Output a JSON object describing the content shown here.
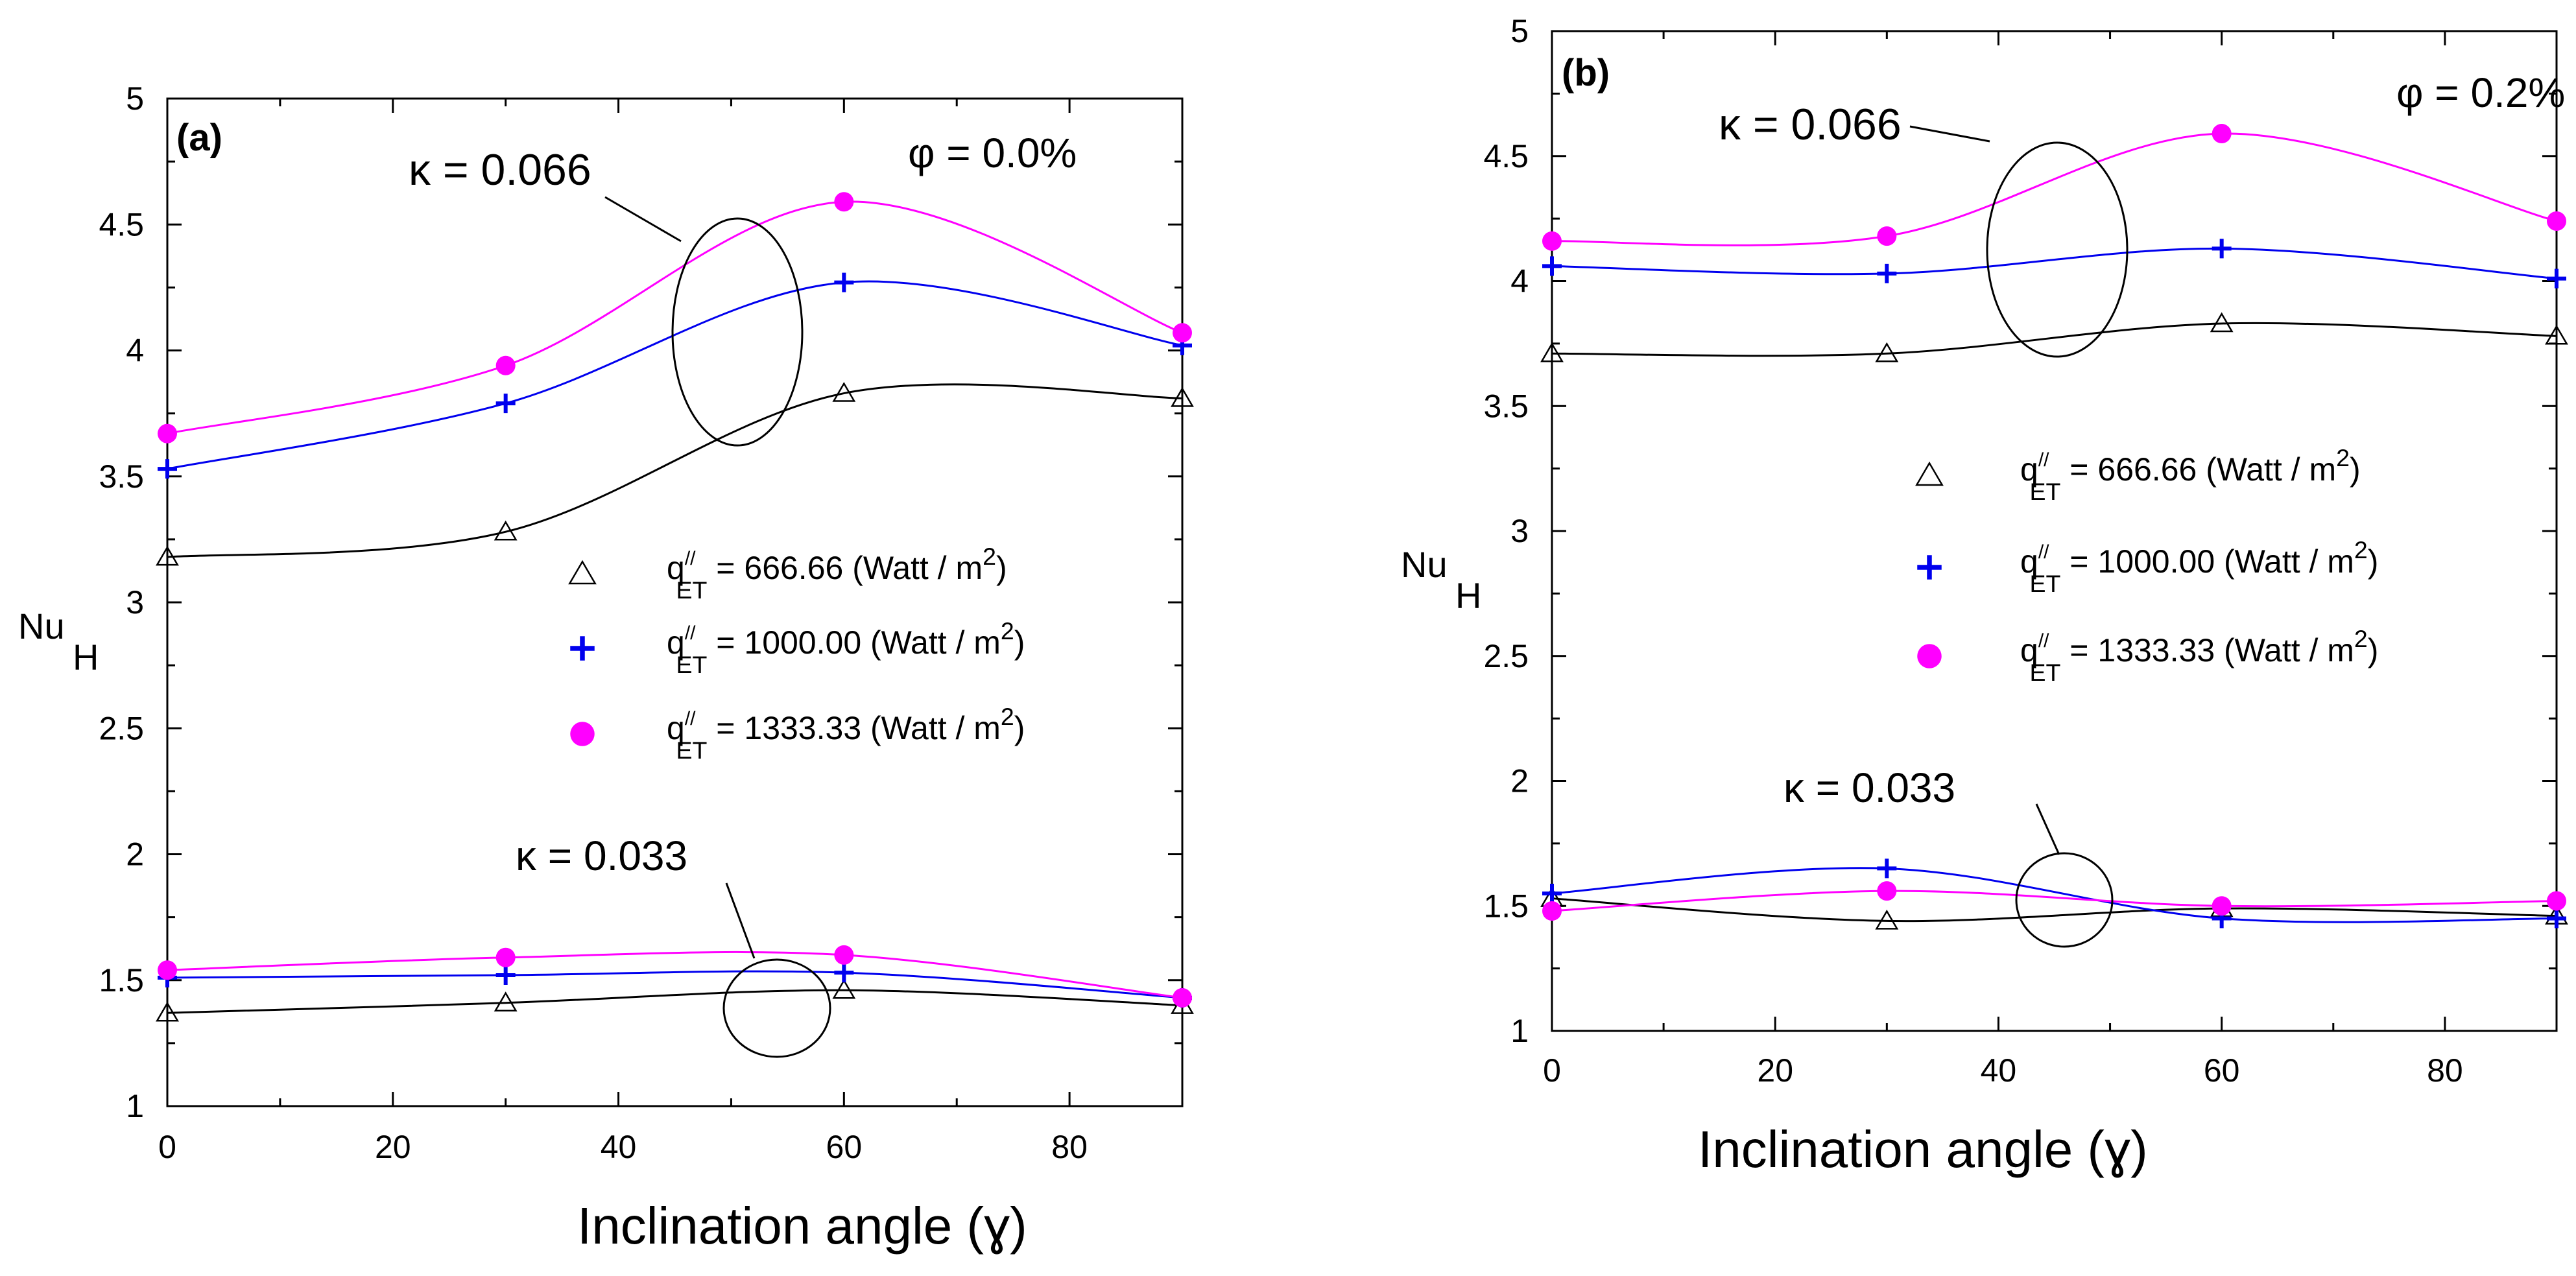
{
  "chart_data": [
    {
      "type": "line",
      "panel_label": "(a)",
      "phi_label": "φ = 0.0%",
      "xlabel": "Inclination angle (ɣ)",
      "ylabel_main": "Nu",
      "ylabel_sub": "H",
      "xlim": [
        0,
        90
      ],
      "ylim": [
        1,
        5
      ],
      "xticks": [
        0,
        20,
        40,
        60,
        80
      ],
      "yticks": [
        1,
        1.5,
        2,
        2.5,
        3,
        3.5,
        4,
        4.5,
        5
      ],
      "ytick_labels": [
        "1",
        "1.5",
        "2",
        "2.5",
        "3",
        "3.5",
        "4",
        "4.5",
        "5"
      ],
      "x": [
        0,
        30,
        60,
        90
      ],
      "groups": [
        {
          "kappa_label": "κ  = 0.066",
          "series": [
            {
              "key": "q666",
              "values": [
                3.18,
                3.28,
                3.83,
                3.81
              ]
            },
            {
              "key": "q1000",
              "values": [
                3.53,
                3.79,
                4.27,
                4.02
              ]
            },
            {
              "key": "q1333",
              "values": [
                3.67,
                3.94,
                4.59,
                4.07
              ]
            }
          ]
        },
        {
          "kappa_label": "κ = 0.033",
          "series": [
            {
              "key": "q666",
              "values": [
                1.37,
                1.41,
                1.46,
                1.4
              ]
            },
            {
              "key": "q1000",
              "values": [
                1.51,
                1.52,
                1.53,
                1.43
              ]
            },
            {
              "key": "q1333",
              "values": [
                1.54,
                1.59,
                1.6,
                1.43
              ]
            }
          ]
        }
      ],
      "legend": [
        {
          "key": "q666",
          "prefix": "q",
          "sup": "//",
          "sub": "ET",
          "text": " = 666.66 (Watt / m",
          "exp": "2",
          "close": ")"
        },
        {
          "key": "q1000",
          "prefix": "q",
          "sup": "//",
          "sub": "ET",
          "text": " = 1000.00 (Watt / m",
          "exp": "2",
          "close": ")"
        },
        {
          "key": "q1333",
          "prefix": "q",
          "sup": "//",
          "sub": "ET",
          "text": " = 1333.33 (Watt / m",
          "exp": "2",
          "close": ")"
        }
      ]
    },
    {
      "type": "line",
      "panel_label": "(b)",
      "phi_label": "φ = 0.2%",
      "xlabel": "Inclination angle (ɣ)",
      "ylabel_main": "Nu",
      "ylabel_sub": "H",
      "xlim": [
        0,
        90
      ],
      "ylim": [
        1,
        5
      ],
      "xticks": [
        0,
        20,
        40,
        60,
        80
      ],
      "yticks": [
        1,
        1.5,
        2,
        2.5,
        3,
        3.5,
        4,
        4.5,
        5
      ],
      "ytick_labels": [
        "1",
        "1.5",
        "2",
        "2.5",
        "3",
        "3.5",
        "4",
        "4.5",
        "5"
      ],
      "x": [
        0,
        30,
        60,
        90
      ],
      "groups": [
        {
          "kappa_label": "κ = 0.066",
          "series": [
            {
              "key": "q666",
              "values": [
                3.71,
                3.71,
                3.83,
                3.78
              ]
            },
            {
              "key": "q1000",
              "values": [
                4.06,
                4.03,
                4.13,
                4.01
              ]
            },
            {
              "key": "q1333",
              "values": [
                4.16,
                4.18,
                4.59,
                4.24
              ]
            }
          ]
        },
        {
          "kappa_label": "κ = 0.033",
          "series": [
            {
              "key": "q666",
              "values": [
                1.53,
                1.44,
                1.49,
                1.46
              ]
            },
            {
              "key": "q1000",
              "values": [
                1.55,
                1.65,
                1.45,
                1.45
              ]
            },
            {
              "key": "q1333",
              "values": [
                1.48,
                1.56,
                1.5,
                1.52
              ]
            }
          ]
        }
      ],
      "legend": [
        {
          "key": "q666",
          "prefix": "q",
          "sup": "//",
          "sub": "ET",
          "text": " = 666.66 (Watt / m",
          "exp": "2",
          "close": ")"
        },
        {
          "key": "q1000",
          "prefix": "q",
          "sup": "//",
          "sub": "ET",
          "text": " = 1000.00 (Watt / m",
          "exp": "2",
          "close": ")"
        },
        {
          "key": "q1333",
          "prefix": "q",
          "sup": "//",
          "sub": "ET",
          "text": " = 1333.33 (Watt / m",
          "exp": "2",
          "close": ")"
        }
      ]
    }
  ],
  "series_styles": {
    "q666": {
      "color": "#000000",
      "marker": "triangle"
    },
    "q1000": {
      "color": "#0000ee",
      "marker": "plus"
    },
    "q1333": {
      "color": "#ff00ff",
      "marker": "circle"
    }
  }
}
